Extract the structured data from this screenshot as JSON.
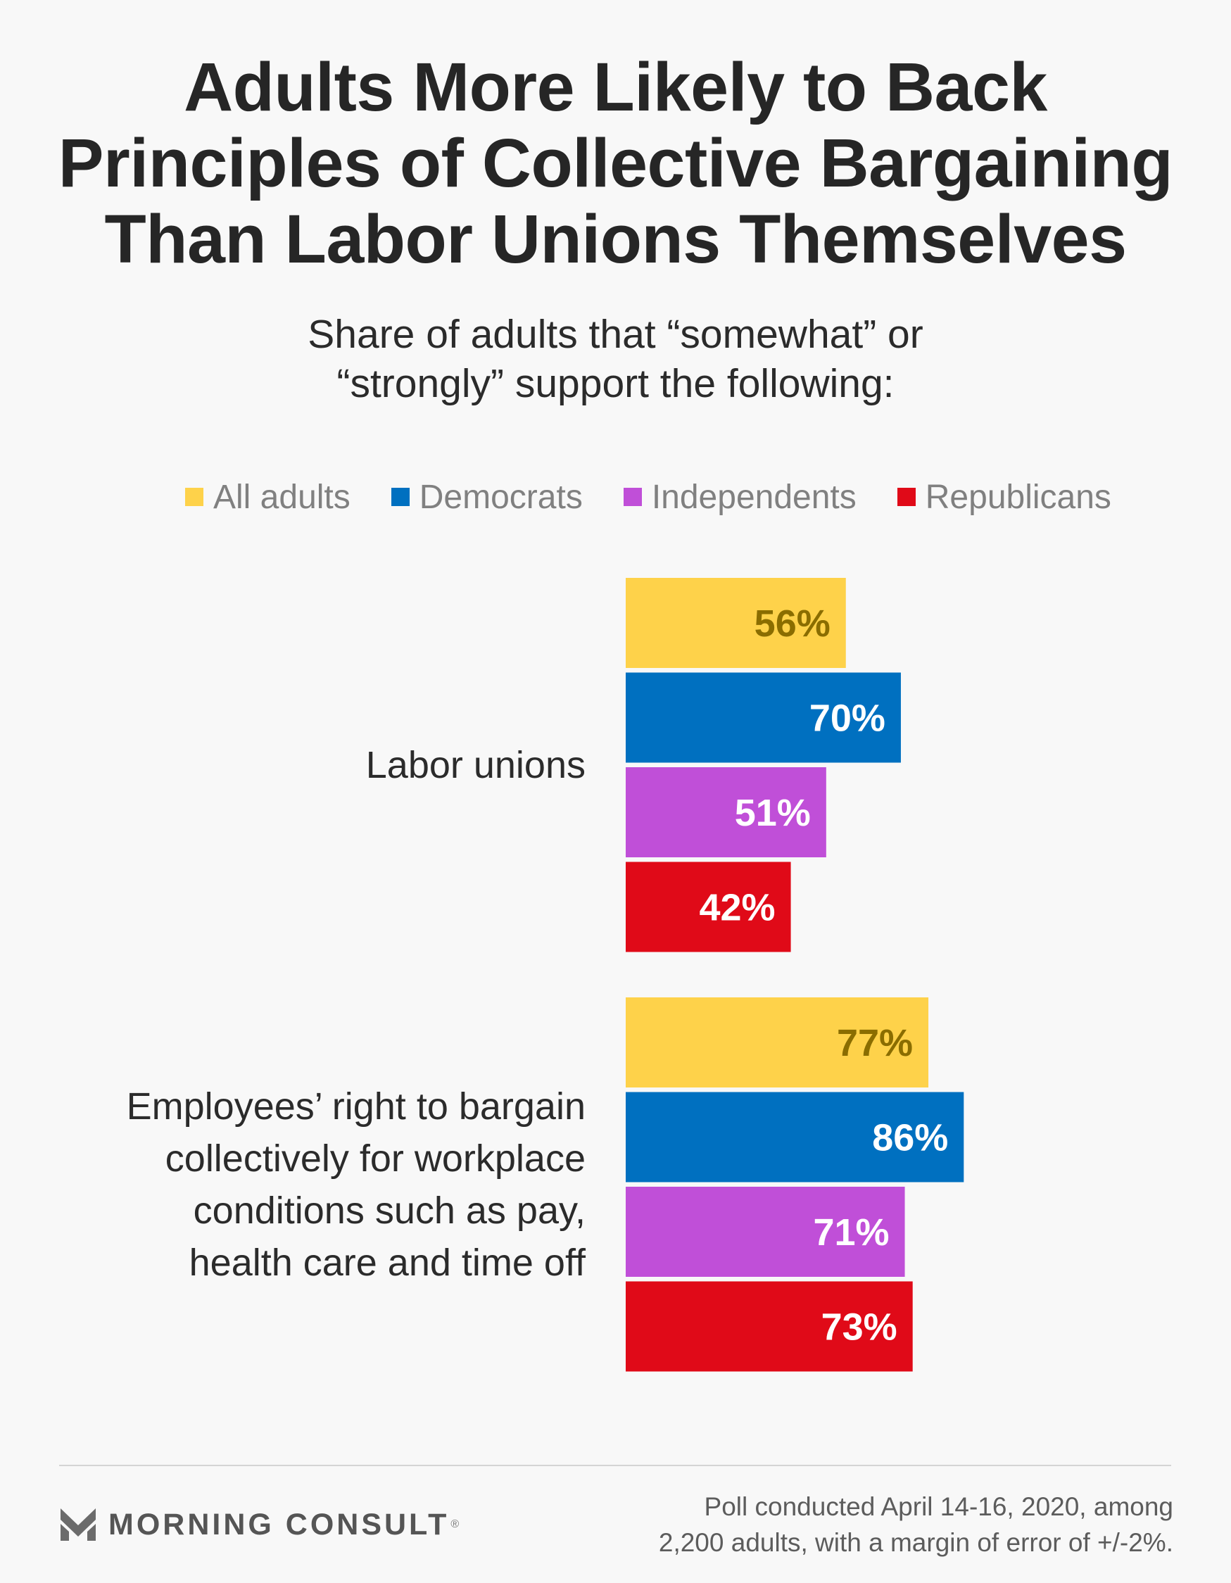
{
  "title_lines": [
    "Adults More Likely to Back",
    "Principles of Collective Bargaining",
    "Than Labor Unions Themselves"
  ],
  "subtitle_lines": [
    "Share of adults that “somewhat” or",
    "“strongly” support the following:"
  ],
  "legend": [
    {
      "label": "All adults",
      "color": "#fed24a"
    },
    {
      "label": "Democrats",
      "color": "#0070c0"
    },
    {
      "label": "Independents",
      "color": "#c04fd8"
    },
    {
      "label": "Republicans",
      "color": "#e00a18"
    }
  ],
  "value_label_colors": [
    "#8a6d00",
    "#ffffff",
    "#ffffff",
    "#ffffff"
  ],
  "chart_data": {
    "type": "bar",
    "orientation": "horizontal",
    "categories": [
      {
        "label_lines": [
          "Labor unions"
        ],
        "label": "Labor unions"
      },
      {
        "label_lines": [
          "Employees’ right to bargain",
          "collectively for workplace",
          "conditions such as pay,",
          "health care and time off"
        ],
        "label": "Employees’ right to bargain collectively for workplace conditions such as pay, health care and time off"
      }
    ],
    "series": [
      {
        "name": "All adults",
        "values": [
          56,
          77
        ],
        "labels": [
          "56%",
          "77%"
        ]
      },
      {
        "name": "Democrats",
        "values": [
          70,
          86
        ],
        "labels": [
          "70%",
          "86%"
        ]
      },
      {
        "name": "Independents",
        "values": [
          51,
          71
        ],
        "labels": [
          "51%",
          "71%"
        ]
      },
      {
        "name": "Republicans",
        "values": [
          42,
          73
        ],
        "labels": [
          "42%",
          "73%"
        ]
      }
    ],
    "unit": "%",
    "xlim": [
      0,
      100
    ],
    "grid": false,
    "legend_position": "top"
  },
  "footer": {
    "logo_text": "MORNING CONSULT",
    "logo_mark": "®",
    "note_lines": [
      "Poll conducted April 14-16, 2020, among",
      "2,200 adults, with a margin of error of +/-2%."
    ]
  }
}
